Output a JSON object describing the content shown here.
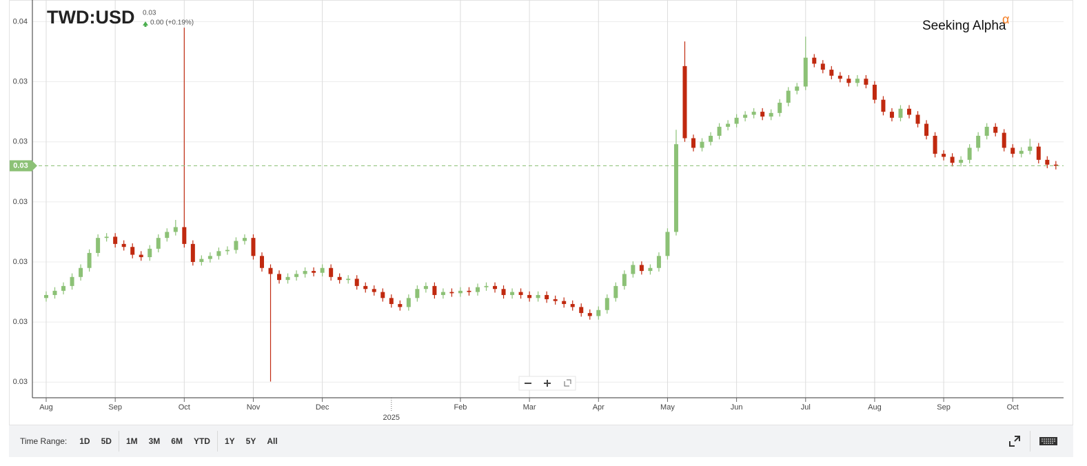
{
  "header": {
    "ticker": "TWD:USD",
    "price": "0.03",
    "change": "0.00 (+0.19%)"
  },
  "logo": {
    "text": "Seeking Alpha",
    "mark": "α"
  },
  "range_bar": {
    "label": "Time Range:",
    "buttons": [
      "1D",
      "5D",
      "1M",
      "3M",
      "6M",
      "YTD",
      "1Y",
      "5Y",
      "All"
    ]
  },
  "chart_data": {
    "type": "candlestick",
    "up_color": "#8cc176",
    "down_color": "#c0290f",
    "grid": true,
    "ylim": [
      0.02874,
      0.03536
    ],
    "yticks": [
      {
        "value": 0.035,
        "label": "0.04"
      },
      {
        "value": 0.034,
        "label": "0.03"
      },
      {
        "value": 0.033,
        "label": "0.03"
      },
      {
        "value": 0.032,
        "label": "0.03"
      },
      {
        "value": 0.031,
        "label": "0.03"
      },
      {
        "value": 0.03,
        "label": "0.03"
      },
      {
        "value": 0.029,
        "label": "0.03"
      }
    ],
    "last_price": {
      "value": 0.0326,
      "label": "0.03"
    },
    "categories": [
      "Aug",
      null,
      null,
      null,
      null,
      null,
      null,
      null,
      "Sep",
      null,
      null,
      null,
      null,
      null,
      null,
      null,
      "Oct",
      null,
      null,
      null,
      null,
      null,
      null,
      null,
      "Nov",
      null,
      null,
      null,
      null,
      null,
      null,
      null,
      "Dec",
      null,
      null,
      null,
      null,
      null,
      null,
      null,
      "2025",
      null,
      null,
      null,
      null,
      null,
      null,
      null,
      "Feb",
      null,
      null,
      null,
      null,
      null,
      null,
      null,
      "Mar",
      null,
      null,
      null,
      null,
      null,
      null,
      null,
      "Apr",
      null,
      null,
      null,
      null,
      null,
      null,
      null,
      "May",
      null,
      null,
      null,
      null,
      null,
      null,
      null,
      "Jun",
      null,
      null,
      null,
      null,
      null,
      null,
      null,
      "Jul",
      null,
      null,
      null,
      null,
      null,
      null,
      null,
      "Aug",
      null,
      null,
      null,
      null,
      null,
      null,
      null,
      "Sep",
      null,
      null,
      null,
      null,
      null,
      null,
      null,
      "Oct",
      null,
      null,
      null,
      null,
      null
    ],
    "open": [
      0.0304,
      0.03045,
      0.03052,
      0.0306,
      0.03075,
      0.0309,
      0.03115,
      0.0314,
      0.03142,
      0.0313,
      0.03125,
      0.03112,
      0.03108,
      0.03122,
      0.0314,
      0.0315,
      0.03158,
      0.0313,
      0.031,
      0.03105,
      0.0311,
      0.03118,
      0.0312,
      0.03135,
      0.0314,
      0.0311,
      0.0309,
      0.0308,
      0.0307,
      0.03075,
      0.0308,
      0.03085,
      0.03082,
      0.0309,
      0.03075,
      0.0307,
      0.03072,
      0.0306,
      0.03055,
      0.0305,
      0.0304,
      0.0303,
      0.03025,
      0.0304,
      0.03055,
      0.0306,
      0.03045,
      0.0305,
      0.03048,
      0.03052,
      0.0305,
      0.03058,
      0.0306,
      0.03055,
      0.03045,
      0.0305,
      0.03045,
      0.0304,
      0.03045,
      0.03038,
      0.03035,
      0.0303,
      0.03025,
      0.03015,
      0.0301,
      0.0302,
      0.0304,
      0.0306,
      0.0308,
      0.03095,
      0.03085,
      0.0309,
      0.0311,
      0.0315,
      0.03426,
      0.03306,
      0.0329,
      0.033,
      0.0331,
      0.03325,
      0.0333,
      0.0334,
      0.03345,
      0.0335,
      0.03342,
      0.03348,
      0.03365,
      0.03385,
      0.03392,
      0.0344,
      0.0343,
      0.0342,
      0.0341,
      0.03405,
      0.03398,
      0.03405,
      0.03395,
      0.0337,
      0.0335,
      0.0334,
      0.03355,
      0.03345,
      0.0333,
      0.0331,
      0.0328,
      0.03275,
      0.03265,
      0.0327,
      0.0329,
      0.0331,
      0.03325,
      0.03315,
      0.0329,
      0.0328,
      0.03285,
      0.03292,
      0.0327,
      0.03262
    ],
    "high": [
      0.03051,
      0.03058,
      0.03066,
      0.03081,
      0.03096,
      0.03121,
      0.03146,
      0.03148,
      0.03148,
      0.03136,
      0.03131,
      0.03118,
      0.03128,
      0.03146,
      0.03156,
      0.0317,
      0.0349,
      0.03136,
      0.03111,
      0.03116,
      0.03124,
      0.03126,
      0.03141,
      0.03146,
      0.03146,
      0.03116,
      0.03096,
      0.03086,
      0.03081,
      0.03086,
      0.03091,
      0.03091,
      0.03096,
      0.03096,
      0.03081,
      0.03078,
      0.03078,
      0.03066,
      0.03061,
      0.03056,
      0.03046,
      0.03036,
      0.03046,
      0.03061,
      0.03066,
      0.03066,
      0.03056,
      0.03056,
      0.03058,
      0.03058,
      0.03064,
      0.03066,
      0.03066,
      0.03061,
      0.03056,
      0.03056,
      0.03051,
      0.03051,
      0.03051,
      0.03044,
      0.03041,
      0.03036,
      0.03031,
      0.03021,
      0.03026,
      0.03046,
      0.03066,
      0.03086,
      0.03101,
      0.03101,
      0.03096,
      0.03116,
      0.03156,
      0.0332,
      0.03467,
      0.03312,
      0.03306,
      0.03316,
      0.03331,
      0.03336,
      0.03346,
      0.03351,
      0.03356,
      0.03356,
      0.03354,
      0.03371,
      0.03391,
      0.03398,
      0.03475,
      0.03446,
      0.03436,
      0.03426,
      0.03416,
      0.03411,
      0.03411,
      0.03411,
      0.03401,
      0.03376,
      0.03356,
      0.03361,
      0.03361,
      0.03351,
      0.03336,
      0.03316,
      0.03286,
      0.03281,
      0.03276,
      0.03296,
      0.03316,
      0.03331,
      0.03331,
      0.03321,
      0.03296,
      0.03291,
      0.03305,
      0.03298,
      0.03276,
      0.03268
    ],
    "low": [
      0.03034,
      0.03039,
      0.03046,
      0.03054,
      0.03069,
      0.03084,
      0.03109,
      0.03134,
      0.03124,
      0.03119,
      0.03106,
      0.03102,
      0.03102,
      0.03116,
      0.03134,
      0.03144,
      0.03124,
      0.03094,
      0.03094,
      0.03099,
      0.03104,
      0.03112,
      0.03114,
      0.03129,
      0.03104,
      0.03084,
      0.02901,
      0.03064,
      0.03064,
      0.03069,
      0.03074,
      0.03076,
      0.03076,
      0.03069,
      0.03064,
      0.03064,
      0.03054,
      0.03049,
      0.03044,
      0.03034,
      0.03024,
      0.03019,
      0.03019,
      0.03034,
      0.03049,
      0.03039,
      0.03039,
      0.03042,
      0.03042,
      0.03044,
      0.03044,
      0.03052,
      0.03049,
      0.03039,
      0.03039,
      0.03039,
      0.03034,
      0.03034,
      0.03032,
      0.03029,
      0.03024,
      0.03019,
      0.03009,
      0.03004,
      0.03004,
      0.03014,
      0.03034,
      0.03054,
      0.03074,
      0.03079,
      0.03079,
      0.03084,
      0.03104,
      0.03144,
      0.033,
      0.03284,
      0.03284,
      0.03294,
      0.03304,
      0.03319,
      0.03324,
      0.03334,
      0.03339,
      0.03336,
      0.03336,
      0.03342,
      0.03359,
      0.03379,
      0.03386,
      0.03424,
      0.03414,
      0.03404,
      0.03399,
      0.03392,
      0.03392,
      0.03389,
      0.03364,
      0.03344,
      0.03334,
      0.03334,
      0.03339,
      0.03324,
      0.03304,
      0.03274,
      0.03269,
      0.03259,
      0.03259,
      0.03264,
      0.03284,
      0.03304,
      0.03309,
      0.03284,
      0.03274,
      0.03274,
      0.03279,
      0.03264,
      0.03256,
      0.03254
    ],
    "close": [
      0.03045,
      0.03052,
      0.0306,
      0.03075,
      0.0309,
      0.03115,
      0.0314,
      0.03142,
      0.0313,
      0.03125,
      0.03112,
      0.03108,
      0.03122,
      0.0314,
      0.0315,
      0.03158,
      0.0313,
      0.031,
      0.03105,
      0.0311,
      0.03118,
      0.0312,
      0.03135,
      0.0314,
      0.0311,
      0.0309,
      0.0308,
      0.0307,
      0.03075,
      0.0308,
      0.03085,
      0.03082,
      0.0309,
      0.03075,
      0.0307,
      0.03072,
      0.0306,
      0.03055,
      0.0305,
      0.0304,
      0.0303,
      0.03025,
      0.0304,
      0.03055,
      0.0306,
      0.03045,
      0.0305,
      0.03048,
      0.03052,
      0.0305,
      0.03058,
      0.0306,
      0.03055,
      0.03045,
      0.0305,
      0.03045,
      0.0304,
      0.03045,
      0.03038,
      0.03035,
      0.0303,
      0.03025,
      0.03015,
      0.0301,
      0.0302,
      0.0304,
      0.0306,
      0.0308,
      0.03095,
      0.03085,
      0.0309,
      0.0311,
      0.0315,
      0.03296,
      0.03306,
      0.0329,
      0.033,
      0.0331,
      0.03325,
      0.0333,
      0.0334,
      0.03345,
      0.0335,
      0.03342,
      0.03348,
      0.03365,
      0.03385,
      0.03392,
      0.0344,
      0.0343,
      0.0342,
      0.0341,
      0.03405,
      0.03398,
      0.03405,
      0.03395,
      0.0337,
      0.0335,
      0.0334,
      0.03355,
      0.03345,
      0.0333,
      0.0331,
      0.0328,
      0.03275,
      0.03265,
      0.0327,
      0.0329,
      0.0331,
      0.03325,
      0.03315,
      0.0329,
      0.0328,
      0.03285,
      0.03292,
      0.0327,
      0.03262,
      0.0326
    ]
  }
}
